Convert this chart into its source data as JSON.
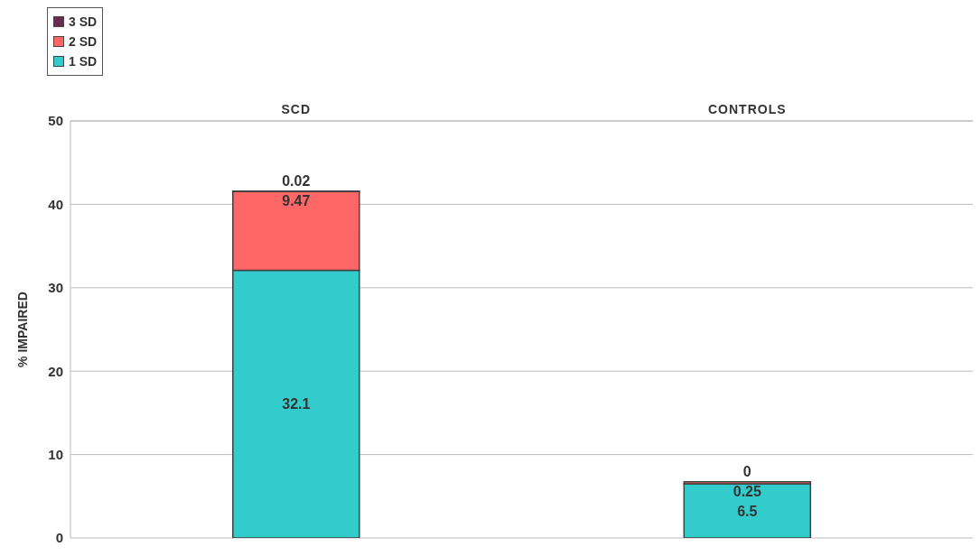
{
  "chart_data": {
    "type": "bar",
    "stacked": true,
    "ylabel": "% IMPAIRED",
    "categories": [
      "SCD",
      "CONTROLS"
    ],
    "series": [
      {
        "name": "1 SD",
        "color": "#33cccc",
        "values": [
          32.1,
          6.5
        ]
      },
      {
        "name": "2 SD",
        "color": "#ff6666",
        "values": [
          9.47,
          0.25
        ]
      },
      {
        "name": "3 SD",
        "color": "#6b2c52",
        "values": [
          0.02,
          0
        ]
      }
    ],
    "ylim": [
      0,
      50
    ],
    "yticks": [
      0,
      10,
      20,
      30,
      40,
      50
    ],
    "grid": "y",
    "legend": "top left",
    "data_labels": true
  }
}
